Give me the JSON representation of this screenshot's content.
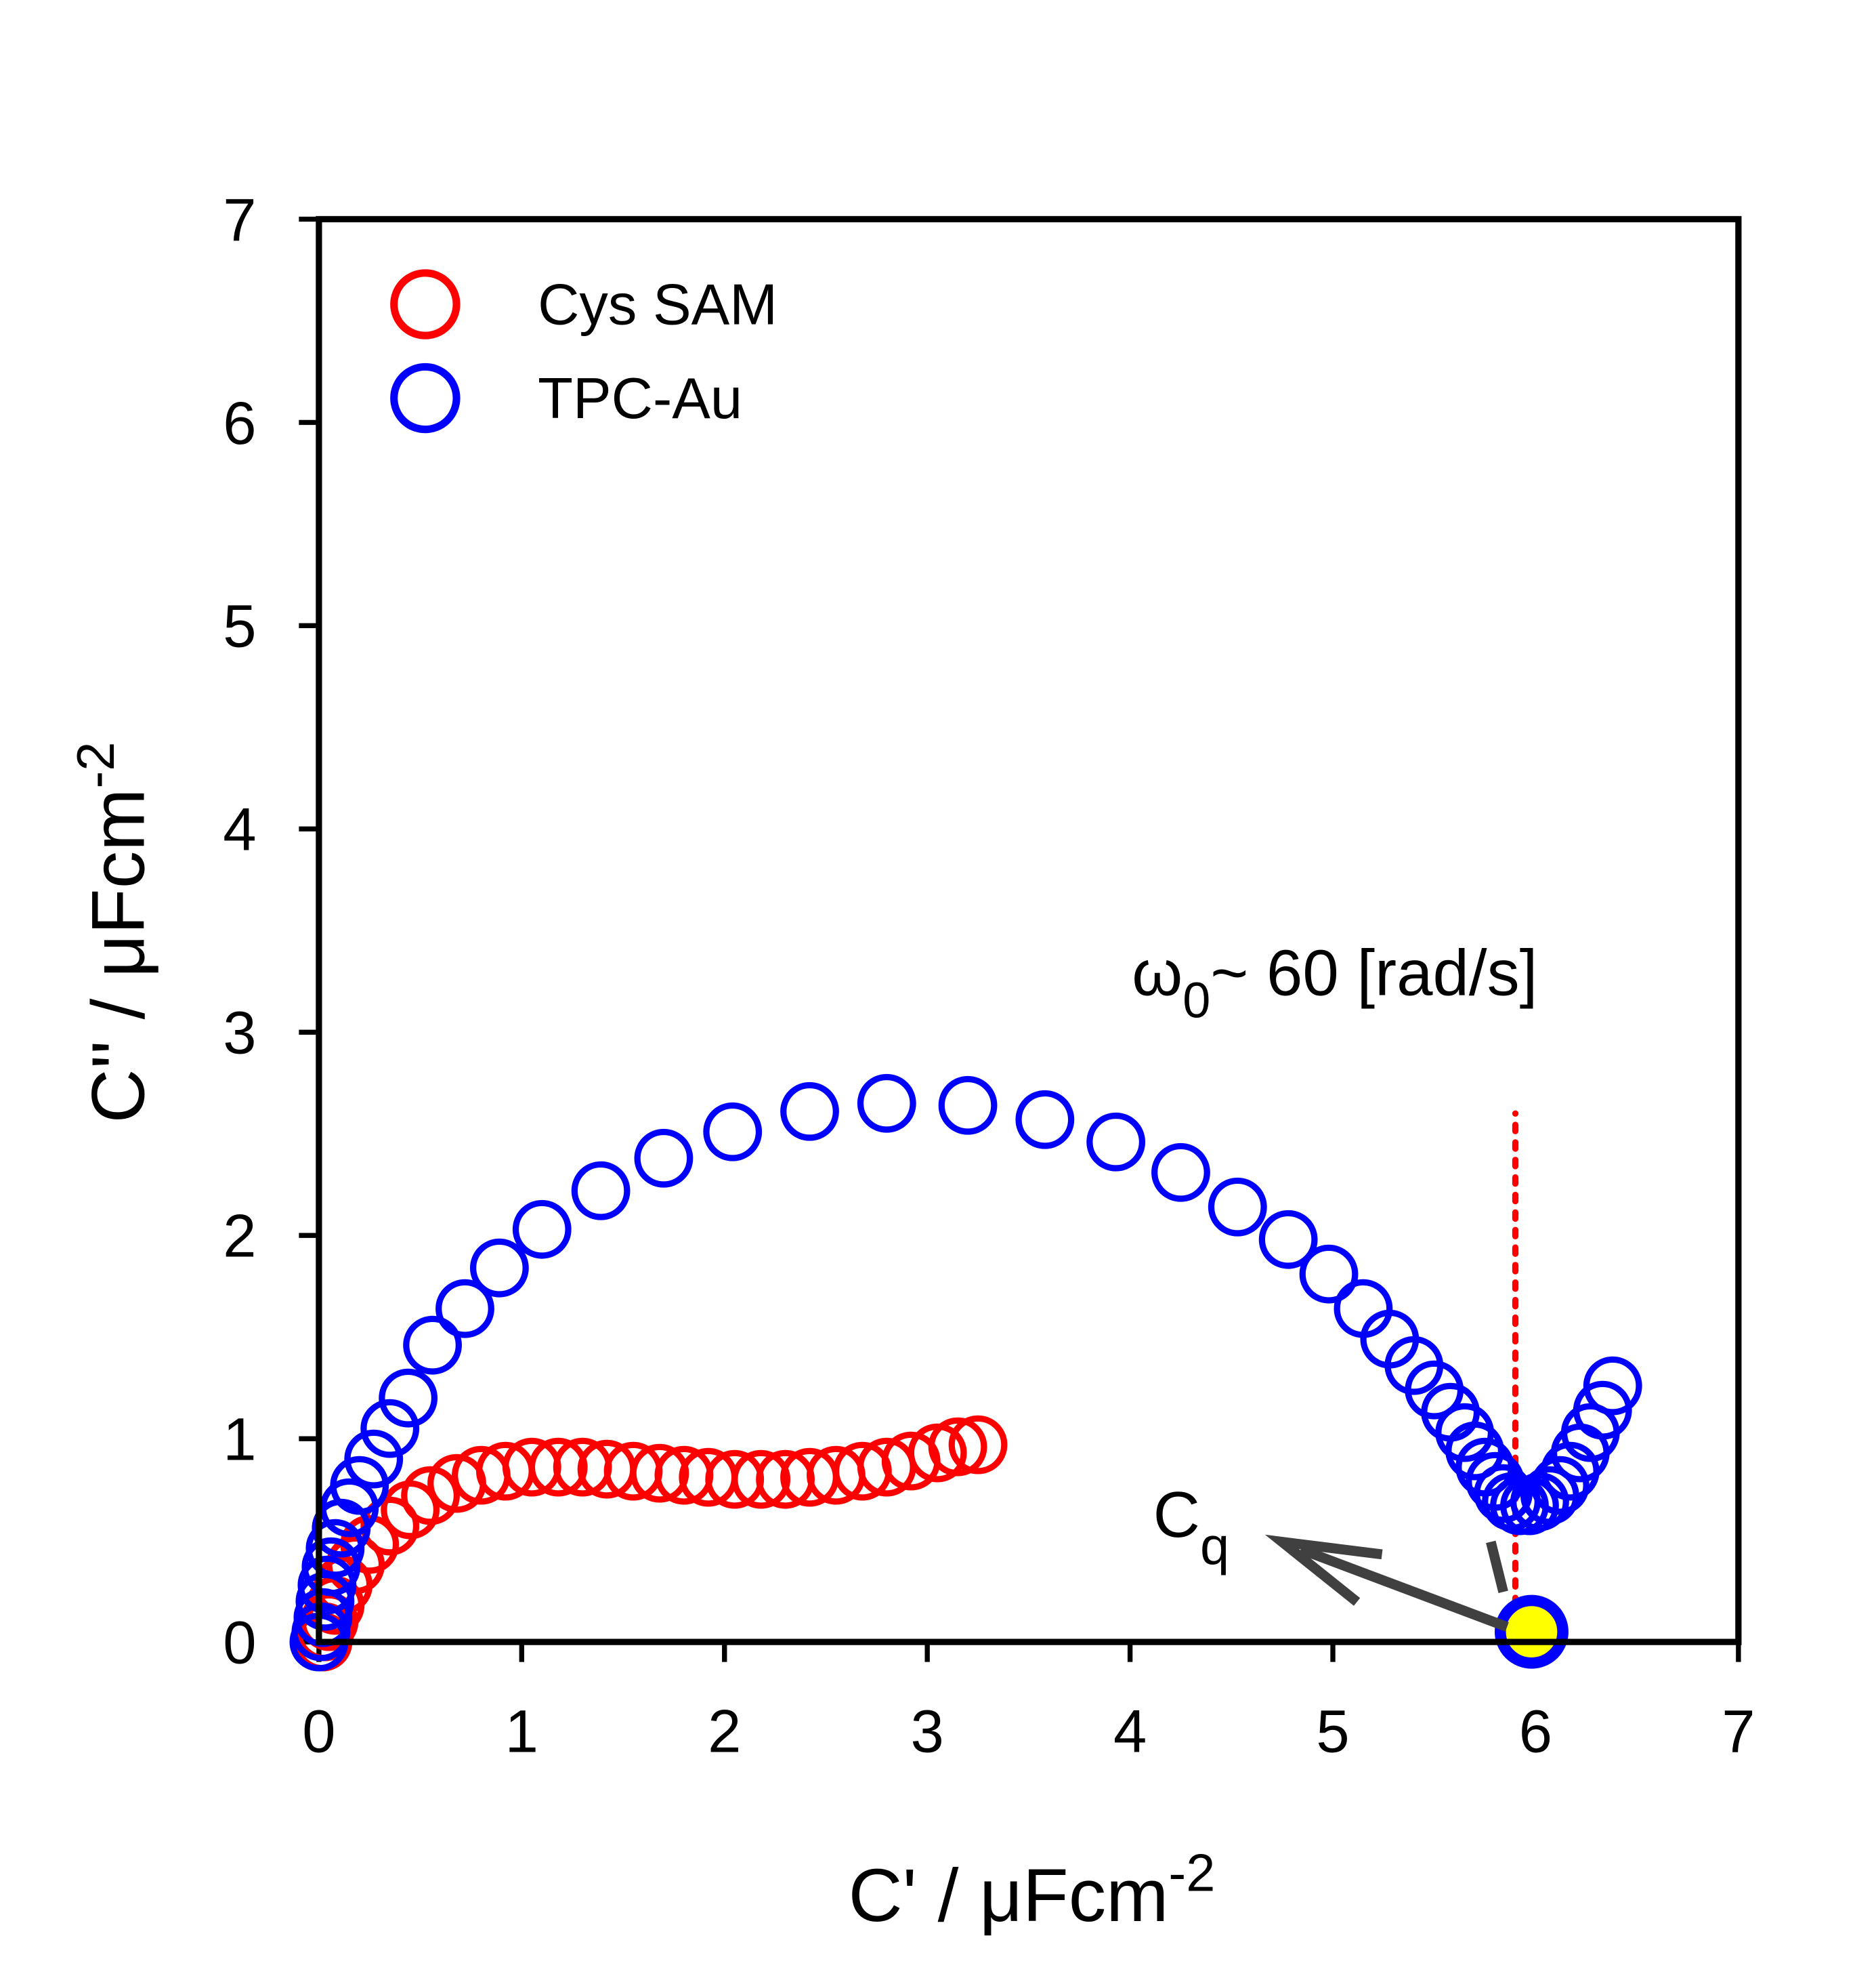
{
  "chart_data": {
    "type": "scatter",
    "xlabel": "C' / μFcm",
    "xlabel_sup": "-2",
    "ylabel": "C'' / μFcm",
    "ylabel_sup": "-2",
    "xlim": [
      0,
      7
    ],
    "ylim": [
      0,
      7
    ],
    "xticks": [
      0,
      1,
      2,
      3,
      4,
      5,
      6,
      7
    ],
    "yticks": [
      0,
      1,
      2,
      3,
      4,
      5,
      6,
      7
    ],
    "legend": "upper left",
    "series": [
      {
        "name": "Cys SAM",
        "color": "#ff0000",
        "x": [
          0.02,
          0.03,
          0.05,
          0.08,
          0.12,
          0.18,
          0.25,
          0.35,
          0.45,
          0.55,
          0.68,
          0.8,
          0.92,
          1.05,
          1.18,
          1.3,
          1.42,
          1.55,
          1.68,
          1.8,
          1.92,
          2.05,
          2.18,
          2.3,
          2.42,
          2.55,
          2.68,
          2.8,
          2.92,
          3.05,
          3.15,
          3.25
        ],
        "values": [
          0.0,
          0.05,
          0.1,
          0.18,
          0.28,
          0.38,
          0.48,
          0.57,
          0.65,
          0.72,
          0.78,
          0.82,
          0.84,
          0.86,
          0.86,
          0.86,
          0.85,
          0.84,
          0.83,
          0.82,
          0.81,
          0.8,
          0.8,
          0.8,
          0.81,
          0.82,
          0.84,
          0.86,
          0.89,
          0.93,
          0.96,
          0.97
        ]
      },
      {
        "name": "TPC-Au",
        "color": "#0000ff",
        "x": [
          0,
          0.01,
          0.02,
          0.03,
          0.04,
          0.06,
          0.08,
          0.11,
          0.15,
          0.2,
          0.27,
          0.35,
          0.44,
          0.56,
          0.72,
          0.89,
          1.1,
          1.39,
          1.7,
          2.04,
          2.42,
          2.8,
          3.2,
          3.58,
          3.93,
          4.25,
          4.53,
          4.78,
          4.98,
          5.15,
          5.28,
          5.4,
          5.5,
          5.58,
          5.65,
          5.7,
          5.75,
          5.8,
          5.84,
          5.88,
          5.92,
          5.97,
          6.02,
          6.07,
          6.12,
          6.17,
          6.22,
          6.27,
          6.33,
          6.38
        ],
        "values": [
          0,
          0.05,
          0.12,
          0.2,
          0.28,
          0.37,
          0.46,
          0.56,
          0.66,
          0.77,
          0.9,
          1.05,
          1.2,
          1.46,
          1.64,
          1.84,
          2.03,
          2.22,
          2.38,
          2.51,
          2.61,
          2.65,
          2.64,
          2.57,
          2.46,
          2.31,
          2.14,
          1.98,
          1.81,
          1.64,
          1.49,
          1.36,
          1.24,
          1.13,
          1.03,
          0.94,
          0.86,
          0.79,
          0.73,
          0.69,
          0.67,
          0.67,
          0.69,
          0.72,
          0.77,
          0.84,
          0.93,
          1.03,
          1.14,
          1.26
        ]
      }
    ],
    "highlight_point": {
      "x": 5.98,
      "y": 0.05,
      "color": "#ffff00"
    },
    "vline": {
      "x": 5.9,
      "ymin": 0.1,
      "ymax": 2.6,
      "color": "#ff0000"
    },
    "annotations": {
      "omega": "ω",
      "omega_sub": "0",
      "omega_text": "~ 60 [rad/s]",
      "cq": "C",
      "cq_sub": "q"
    }
  }
}
